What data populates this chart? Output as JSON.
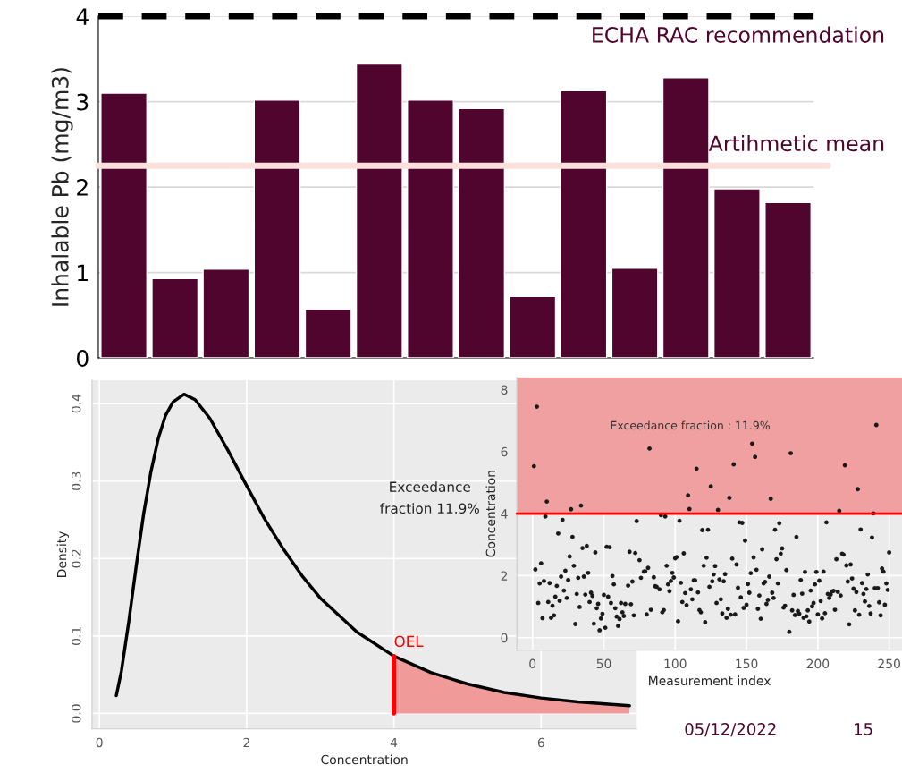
{
  "chart_data": [
    {
      "type": "bar",
      "ylabel": "Inhalable Pb (mg/m3)",
      "categories": [
        null,
        null,
        null,
        null,
        null,
        null,
        null,
        null,
        null,
        null,
        null,
        null,
        null,
        null
      ],
      "values": [
        3.1,
        0.93,
        1.04,
        3.02,
        0.57,
        3.44,
        3.02,
        2.92,
        0.72,
        3.13,
        1.05,
        3.28,
        1.98,
        1.82
      ],
      "color": "#50052f",
      "ylim": [
        0,
        4
      ],
      "yticks": [
        0,
        1,
        2,
        3,
        4
      ],
      "grid": "y",
      "ref_lines": [
        {
          "axis": "y",
          "value": 4,
          "label": "ECHA RAC recommendation",
          "color": "#000000",
          "line_style": "dashed"
        },
        {
          "axis": "y",
          "value": 2.25,
          "label": "Artihmetic mean",
          "color": "#fde0dc"
        }
      ]
    },
    {
      "type": "line",
      "xlabel": "Concentration",
      "ylabel": "Density",
      "series": [
        {
          "type": "line",
          "color": "#000000",
          "x": [
            0.23,
            0.3,
            0.4,
            0.5,
            0.6,
            0.7,
            0.8,
            0.9,
            1.0,
            1.15,
            1.3,
            1.5,
            1.75,
            2.0,
            2.25,
            2.5,
            2.75,
            3.0,
            3.5,
            4.0,
            4.5,
            5.0,
            5.5,
            6.0,
            6.5,
            7.2
          ],
          "values": [
            0.023,
            0.055,
            0.119,
            0.19,
            0.257,
            0.312,
            0.355,
            0.385,
            0.402,
            0.412,
            0.405,
            0.381,
            0.339,
            0.294,
            0.25,
            0.212,
            0.178,
            0.149,
            0.105,
            0.074,
            0.053,
            0.038,
            0.027,
            0.02,
            0.015,
            0.01
          ]
        },
        {
          "type": "area",
          "color": "#f09a9a",
          "x": [
            4.0,
            4.5,
            5.0,
            5.5,
            6.0,
            6.5,
            7.2
          ],
          "values": [
            0.074,
            0.053,
            0.038,
            0.027,
            0.02,
            0.015,
            0.01
          ]
        }
      ],
      "xlim": [
        -0.1,
        7.3
      ],
      "ylim": [
        -0.02,
        0.43
      ],
      "xticks": [
        0,
        2,
        4,
        6
      ],
      "yticks": [
        {
          "value": 0,
          "label": "0.0"
        },
        0.1,
        0.2,
        0.3,
        0.4
      ],
      "grid": true,
      "ref_lines": [
        {
          "axis": "x",
          "value": 4,
          "label": "OEL",
          "color": "#ff0000"
        }
      ],
      "annotations": [
        "Exceedance\nfraction 11.9%"
      ]
    },
    {
      "type": "scatter",
      "xlabel": "Measurement index",
      "ylabel": "Concentration",
      "color": "#1a1a1a",
      "marker": "circle",
      "x": [
        1,
        2,
        3,
        4,
        5,
        6,
        7,
        8,
        9,
        10,
        11,
        12,
        13,
        14,
        15,
        16,
        17,
        18,
        19,
        20,
        21,
        22,
        23,
        24,
        25,
        26,
        27,
        28,
        29,
        30,
        31,
        32,
        33,
        34,
        35,
        36,
        37,
        38,
        39,
        40,
        41,
        42,
        43,
        44,
        45,
        46,
        47,
        48,
        49,
        50,
        51,
        52,
        53,
        54,
        55,
        56,
        57,
        58,
        59,
        60,
        61,
        62,
        63,
        64,
        65,
        67,
        68,
        69,
        70,
        71,
        72,
        73,
        75,
        76,
        78,
        79,
        80,
        81,
        82,
        83,
        85,
        86,
        87,
        89,
        90,
        91,
        92,
        93,
        94,
        95,
        96,
        97,
        98,
        99,
        100,
        101,
        102,
        103,
        104,
        105,
        106,
        107,
        108,
        109,
        110,
        111,
        112,
        113,
        114,
        115,
        116,
        117,
        118,
        119,
        120,
        121,
        122,
        123,
        124,
        125,
        126,
        127,
        128,
        129,
        130,
        131,
        132,
        133,
        134,
        135,
        136,
        137,
        138,
        139,
        140,
        141,
        142,
        143,
        144,
        145,
        146,
        147,
        148,
        149,
        150,
        151,
        152,
        153,
        154,
        155,
        156,
        157,
        158,
        159,
        160,
        161,
        162,
        163,
        164,
        165,
        166,
        167,
        168,
        169,
        170,
        171,
        172,
        173,
        174,
        175,
        176,
        177,
        178,
        180,
        181,
        182,
        183,
        184,
        185,
        186,
        187,
        188,
        189,
        190,
        191,
        192,
        193,
        194,
        195,
        196,
        197,
        198,
        199,
        200,
        201,
        202,
        203,
        204,
        205,
        206,
        207,
        208,
        209,
        210,
        211,
        212,
        213,
        214,
        215,
        216,
        217,
        218,
        219,
        220,
        221,
        222,
        223,
        224,
        225,
        226,
        227,
        228,
        229,
        230,
        231,
        232,
        233,
        234,
        235,
        236,
        237,
        238,
        239,
        240,
        241,
        242,
        243,
        244,
        245,
        246,
        247,
        248,
        249,
        250
      ],
      "values": [
        5.53,
        2.2,
        7.45,
        1.12,
        1.75,
        2.4,
        0.63,
        1.83,
        3.91,
        4.39,
        1.15,
        1.76,
        0.64,
        1.03,
        0.72,
        1.32,
        1.67,
        3.36,
        1.19,
        1.97,
        3.8,
        1.52,
        2.16,
        1.28,
        1.86,
        2.62,
        4.14,
        3.25,
        2.32,
        0.44,
        1.41,
        1.93,
        0.99,
        4.26,
        2.89,
        1.97,
        1.39,
        2.96,
        2.09,
        1.15,
        1.45,
        1.35,
        0.45,
        2.75,
        0.95,
        1.09,
        0.24,
        0.62,
        0.77,
        1.38,
        0.32,
        2.93,
        1.32,
        2.92,
        1.12,
        1.99,
        1.72,
        0.95,
        0.68,
        0.38,
        0.6,
        1.12,
        0.82,
        0.7,
        1.09,
        1.68,
        2.77,
        1.08,
        1.81,
        0.72,
        2.73,
        3.76,
        2.5,
        1.93,
        2.13,
        2.14,
        0.75,
        2.25,
        6.1,
        0.9,
        1.95,
        1.66,
        1.64,
        1.56,
        3.95,
        0.82,
        0.89,
        3.91,
        2.32,
        1.72,
        1.5,
        1.83,
        2.09,
        1.94,
        2.56,
        2.6,
        0.53,
        3.77,
        1.77,
        1.15,
        2.72,
        1.44,
        1.05,
        4.59,
        4.15,
        1.56,
        1.24,
        1.85,
        1.85,
        5.45,
        1.46,
        0.89,
        0.82,
        3.47,
        2.32,
        0.5,
        2.58,
        3.48,
        1.64,
        4.88,
        1.82,
        2.04,
        2.31,
        1.12,
        4.12,
        1.88,
        1.24,
        0.78,
        1.82,
        2.05,
        0.64,
        0.93,
        4.51,
        0.74,
        2.55,
        5.59,
        0.75,
        2.36,
        1.61,
        3.72,
        1.3,
        3.7,
        0.96,
        3.13,
        1.06,
        1.73,
        1.45,
        2.08,
        6.26,
        2.59,
        5.83,
        2.19,
        0.93,
        1.36,
        0.61,
        2.85,
        1.75,
        1.8,
        1.09,
        1.22,
        1.97,
        4.48,
        1.45,
        1.28,
        3.48,
        2.53,
        1.75,
        3.69,
        2.71,
        2.88,
        0.97,
        1.03,
        2.18,
        0.19,
        5.95,
        0.88,
        1.38,
        0.73,
        3.25,
        0.86,
        0.77,
        1.86,
        1.42,
        0.64,
        2.12,
        0.69,
        0.88,
        0.52,
        1.52,
        1.01,
        1.12,
        1.72,
        2.12,
        0.75,
        1.84,
        1.18,
        0.62,
        2.13,
        0.79,
        3.72,
        1.41,
        1.28,
        1.39,
        1.49,
        1.51,
        0.9,
        2.53,
        1.48,
        4.09,
        1.36,
        2.71,
        2.68,
        5.56,
        2.33,
        1.81,
        0.43,
        2.36,
        1.91,
        1.58,
        0.88,
        1.47,
        4.79,
        0.74,
        3.49,
        1.76,
        1.41,
        1.17,
        1.57,
        2.04,
        1.02,
        0.78,
        3.23,
        4.01,
        1.6,
        6.86,
        1.6,
        1.14,
        0.72,
        2.23,
        2.13,
        1.06,
        1.75,
        1.54,
        2.75
      ],
      "xlim": [
        -11,
        259
      ],
      "ylim": [
        -0.4,
        8.4
      ],
      "xticks": [
        0,
        50,
        100,
        150,
        200,
        250
      ],
      "yticks": [
        0,
        2,
        4,
        6,
        8
      ],
      "grid": true,
      "ref_lines": [
        {
          "axis": "y",
          "value": 4,
          "color": "#ff0000"
        }
      ],
      "bands": [
        {
          "axis": "y",
          "from": 4,
          "to": 8.4,
          "color": "#f0a0a0"
        }
      ],
      "annotations": [
        "Exceedance fraction : 11.9%",
        "05/12/2022",
        "15"
      ]
    }
  ]
}
